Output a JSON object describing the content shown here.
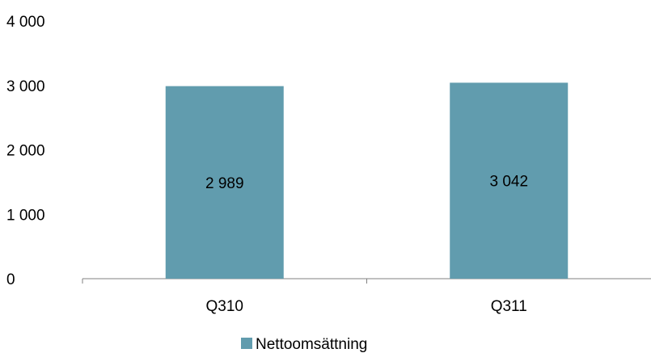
{
  "chart_data": {
    "type": "bar",
    "categories": [
      "Q310",
      "Q311"
    ],
    "series": [
      {
        "name": "Nettoomsättning",
        "values": [
          2989,
          3042
        ],
        "color": "#619CAE"
      }
    ],
    "data_labels": [
      "2 989",
      "3 042"
    ],
    "y_ticks": [
      {
        "value": 0,
        "label": "0"
      },
      {
        "value": 1000,
        "label": "1 000"
      },
      {
        "value": 2000,
        "label": "2 000"
      },
      {
        "value": 3000,
        "label": "3 000"
      },
      {
        "value": 4000,
        "label": "4 000"
      }
    ],
    "title": "",
    "xlabel": "",
    "ylabel": "",
    "ylim": [
      0,
      4000
    ],
    "grid": false,
    "legend_placement": "bottom"
  }
}
